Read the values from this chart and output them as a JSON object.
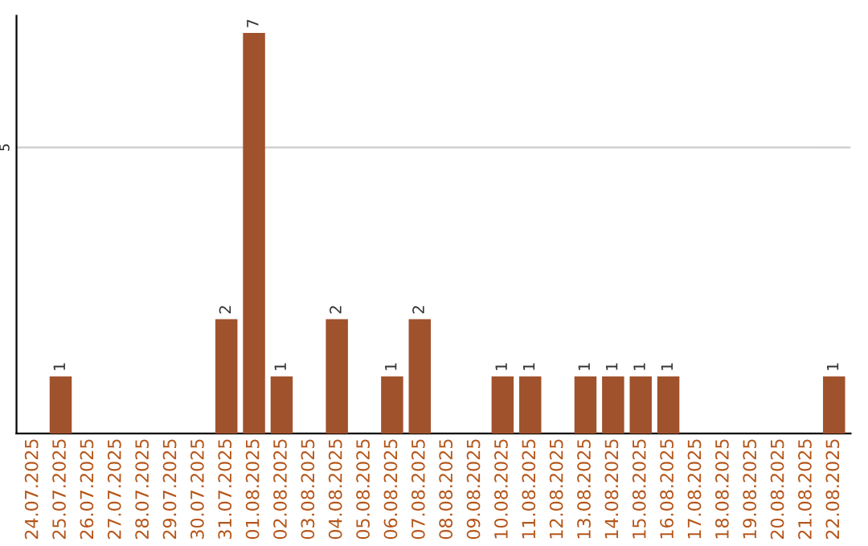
{
  "chart_data": {
    "type": "bar",
    "categories": [
      "24.07.2025",
      "25.07.2025",
      "26.07.2025",
      "27.07.2025",
      "28.07.2025",
      "29.07.2025",
      "30.07.2025",
      "31.07.2025",
      "01.08.2025",
      "02.08.2025",
      "03.08.2025",
      "04.08.2025",
      "05.08.2025",
      "06.08.2025",
      "07.08.2025",
      "08.08.2025",
      "09.08.2025",
      "10.08.2025",
      "11.08.2025",
      "12.08.2025",
      "13.08.2025",
      "14.08.2025",
      "15.08.2025",
      "16.08.2025",
      "17.08.2025",
      "18.08.2025",
      "19.08.2025",
      "20.08.2025",
      "21.08.2025",
      "22.08.2025"
    ],
    "values": [
      0,
      1,
      0,
      0,
      0,
      0,
      0,
      2,
      7,
      1,
      0,
      2,
      0,
      1,
      2,
      0,
      0,
      1,
      1,
      0,
      1,
      1,
      1,
      1,
      0,
      0,
      0,
      0,
      0,
      1
    ],
    "value_labels": [
      null,
      "1",
      null,
      null,
      null,
      null,
      null,
      "2",
      "7",
      "1",
      null,
      "2",
      null,
      "1",
      "2",
      null,
      null,
      "1",
      "1",
      null,
      "1",
      "1",
      "1",
      "1",
      null,
      null,
      null,
      null,
      null,
      "1"
    ],
    "color": "#a0522d",
    "ylim": [
      0,
      7.3
    ],
    "yticks": [
      5
    ],
    "grid": "y",
    "legend": false
  }
}
